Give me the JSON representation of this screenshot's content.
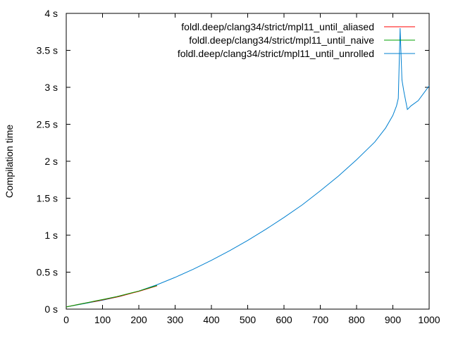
{
  "chart_data": {
    "type": "line",
    "title": "",
    "xlabel": "",
    "ylabel": "Compilation time",
    "xlim": [
      0,
      1000
    ],
    "ylim": [
      0,
      4
    ],
    "xticks": [
      0,
      100,
      200,
      300,
      400,
      500,
      600,
      700,
      800,
      900,
      1000
    ],
    "xtick_labels": [
      "0",
      "100",
      "200",
      "300",
      "400",
      "500",
      "600",
      "700",
      "800",
      "900",
      "1000"
    ],
    "yticks": [
      0,
      0.5,
      1,
      1.5,
      2,
      2.5,
      3,
      3.5,
      4
    ],
    "ytick_labels": [
      "0 s",
      "0.5 s",
      "1 s",
      "1.5 s",
      "2 s",
      "2.5 s",
      "3 s",
      "3.5 s",
      "4 s"
    ],
    "grid": false,
    "legend_position": "top-right",
    "series": [
      {
        "name": "foldl.deep/clang34/strict/mpl11_until_aliased",
        "color": "#ff0000",
        "x": [
          0,
          20,
          40,
          60,
          80,
          100,
          120,
          140,
          160,
          180,
          200,
          220,
          240,
          250
        ],
        "y": [
          0.03,
          0.05,
          0.07,
          0.09,
          0.105,
          0.125,
          0.145,
          0.165,
          0.19,
          0.215,
          0.24,
          0.27,
          0.3,
          0.315
        ]
      },
      {
        "name": "foldl.deep/clang34/strict/mpl11_until_naive",
        "color": "#00a000",
        "x": [
          0,
          20,
          40,
          60,
          80,
          100,
          120,
          140,
          160,
          180,
          200,
          220,
          240,
          250
        ],
        "y": [
          0.03,
          0.05,
          0.07,
          0.09,
          0.11,
          0.13,
          0.15,
          0.17,
          0.195,
          0.22,
          0.245,
          0.275,
          0.305,
          0.32
        ]
      },
      {
        "name": "foldl.deep/clang34/strict/mpl11_until_unrolled",
        "color": "#0080d0",
        "x": [
          0,
          50,
          100,
          150,
          200,
          250,
          300,
          350,
          400,
          450,
          500,
          550,
          600,
          650,
          700,
          750,
          800,
          850,
          880,
          900,
          910,
          915,
          920,
          925,
          930,
          940,
          950,
          970,
          1000
        ],
        "y": [
          0.03,
          0.075,
          0.12,
          0.175,
          0.245,
          0.33,
          0.43,
          0.54,
          0.66,
          0.79,
          0.93,
          1.08,
          1.24,
          1.41,
          1.6,
          1.8,
          2.02,
          2.26,
          2.45,
          2.62,
          2.75,
          2.85,
          3.8,
          3.1,
          2.95,
          2.7,
          2.75,
          2.82,
          3.02
        ]
      }
    ]
  }
}
